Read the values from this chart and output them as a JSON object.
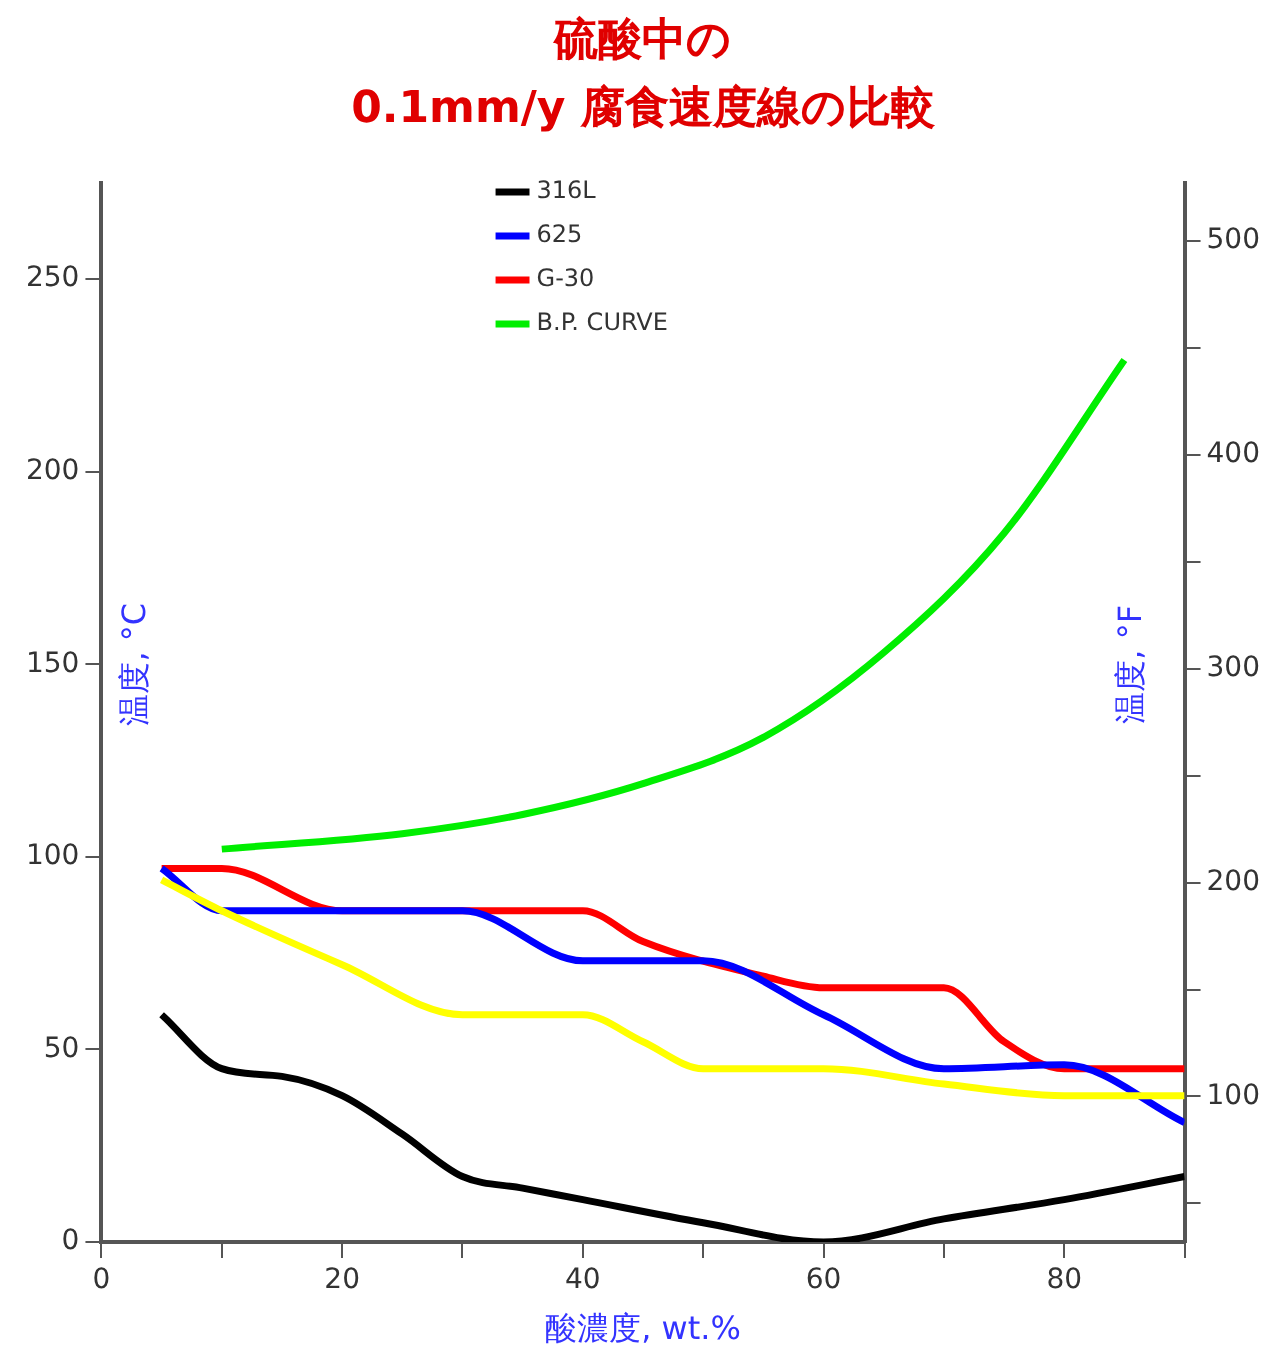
{
  "chart_data": {
    "type": "line",
    "title": "硫酸中の\n0.1mm/y 腐食速度線の比較",
    "xlabel": "酸濃度, wt.%",
    "ylabel": "温度, °C",
    "y2label": "温度, °F",
    "xlim": [
      0,
      90
    ],
    "xticks": [
      0,
      {
        "value": 10,
        "label": null
      },
      20,
      {
        "value": 30,
        "label": null
      },
      40,
      {
        "value": 50,
        "label": null
      },
      60,
      {
        "value": 70,
        "label": null
      },
      80,
      {
        "value": 90,
        "label": null
      }
    ],
    "ylim": [
      0,
      275
    ],
    "yticks": [
      0,
      50,
      100,
      150,
      200,
      250
    ],
    "y2lim": [
      32,
      527
    ],
    "y2ticks": [
      {
        "value": 50,
        "label": null
      },
      100,
      {
        "value": 150,
        "label": null
      },
      200,
      {
        "value": 250,
        "label": null
      },
      300,
      {
        "value": 350,
        "label": null
      },
      400,
      {
        "value": 450,
        "label": null
      },
      500
    ],
    "grid": false,
    "legend": "top",
    "marker": "none",
    "line_style": "solid",
    "series": [
      {
        "name": "316L",
        "color": "#000000",
        "x": [
          5,
          10,
          15,
          20,
          25,
          30,
          35,
          40,
          50,
          60,
          70,
          80,
          90
        ],
        "values": [
          59,
          45,
          43,
          38,
          28,
          17,
          14,
          11,
          5,
          0,
          6,
          11,
          17
        ]
      },
      {
        "color": "#ffff00",
        "x": [
          5,
          10,
          20,
          30,
          40,
          45,
          50,
          60,
          70,
          80,
          90
        ],
        "values": [
          94,
          86,
          72,
          59,
          59,
          52,
          45,
          45,
          41,
          38,
          38
        ]
      },
      {
        "name": "625",
        "color": "#0000ff",
        "x": [
          5,
          10,
          20,
          30,
          40,
          50,
          60,
          70,
          80,
          90
        ],
        "values": [
          97,
          86,
          86,
          86,
          73,
          73,
          59,
          45,
          46,
          31
        ]
      },
      {
        "name": "G-30",
        "color": "#ff0000",
        "x": [
          5,
          10,
          20,
          30,
          40,
          45,
          55,
          60,
          70,
          75,
          80,
          90
        ],
        "values": [
          97,
          97,
          86,
          86,
          86,
          78,
          69,
          66,
          66,
          52,
          45,
          45
        ]
      },
      {
        "name": "B.P. CURVE",
        "color": "#00ee00",
        "x": [
          10,
          25,
          35,
          45,
          55,
          65,
          75,
          85
        ],
        "values": [
          102,
          106,
          111,
          119,
          131,
          153,
          184,
          229
        ]
      }
    ]
  }
}
